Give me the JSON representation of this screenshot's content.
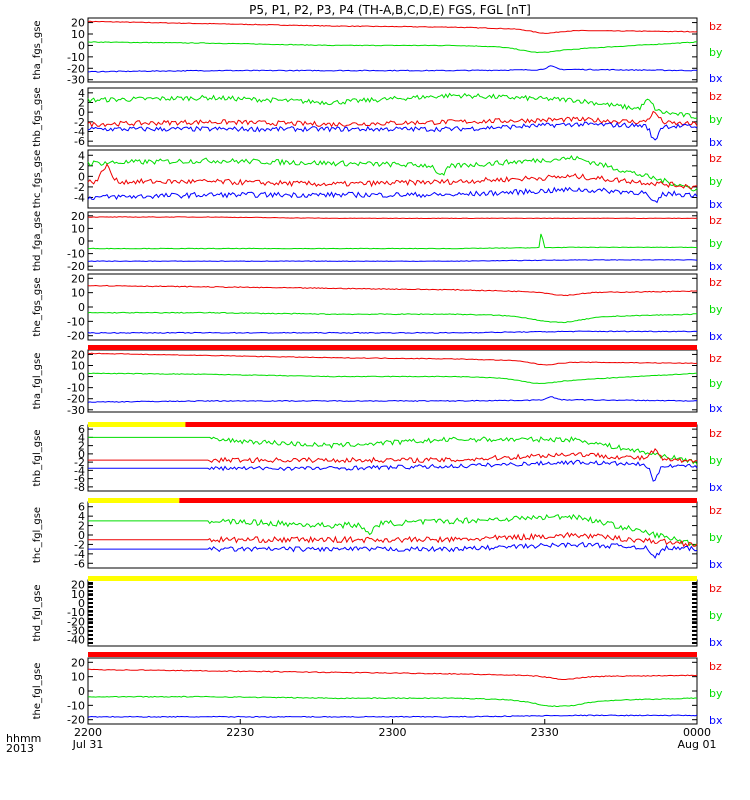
{
  "title": "P5, P1, P2, P3, P4 (TH-A,B,C,D,E) FGS, FGL [nT]",
  "colors": {
    "bx": "#0000ff",
    "by": "#00dd00",
    "bz": "#ee0000",
    "flag_red": "#ff0000",
    "flag_yellow": "#ffff00",
    "frame": "#000000"
  },
  "time_axis": {
    "row1_label": "hhmm",
    "row2_label": "2013",
    "ticks": [
      {
        "label": "2200",
        "sublabel": "Jul 31"
      },
      {
        "label": "2230",
        "sublabel": ""
      },
      {
        "label": "2300",
        "sublabel": ""
      },
      {
        "label": "2330",
        "sublabel": ""
      },
      {
        "label": "0000",
        "sublabel": "Aug 01"
      }
    ]
  },
  "chart_data": [
    {
      "type": "line",
      "ylabel": "tha_fgs_gse",
      "ylim": [
        -32,
        24
      ],
      "yticks": [
        "20",
        "10",
        "0",
        "-10",
        "-20",
        "-30"
      ],
      "ytick_values": [
        20,
        10,
        0,
        -10,
        -20,
        -30
      ],
      "legend": [
        "bz",
        "by",
        "bx"
      ],
      "data_start": 0,
      "series": [
        {
          "name": "bz",
          "base": [
            21,
            19,
            17,
            16,
            13,
            12
          ],
          "noise": 0.3,
          "events": [
            {
              "t": 0.75,
              "amp": -3,
              "w": 0.03
            }
          ]
        },
        {
          "name": "by",
          "base": [
            3,
            2,
            0,
            0,
            -3,
            3
          ],
          "noise": 0.3,
          "events": [
            {
              "t": 0.74,
              "amp": -4,
              "w": 0.04
            }
          ]
        },
        {
          "name": "bx",
          "base": [
            -23,
            -22,
            -22,
            -22,
            -21,
            -22
          ],
          "noise": 0.4,
          "events": [
            {
              "t": 0.76,
              "amp": 3,
              "w": 0.01
            }
          ]
        }
      ]
    },
    {
      "type": "line",
      "ylabel": "thb_fgs_gse",
      "ylim": [
        -7,
        5
      ],
      "yticks": [
        "4",
        "2",
        "0",
        "-2",
        "-4",
        "-6"
      ],
      "ytick_values": [
        4,
        2,
        0,
        -2,
        -4,
        -6
      ],
      "legend": [
        "bz",
        "by",
        "bx"
      ],
      "data_start": 0,
      "series": [
        {
          "name": "by",
          "base": [
            2.5,
            3,
            2,
            3.5,
            2.5,
            -1
          ],
          "noise": 0.5,
          "events": [
            {
              "t": 0.92,
              "amp": 2,
              "w": 0.01
            }
          ]
        },
        {
          "name": "bz",
          "base": [
            -2.5,
            -2,
            -2.5,
            -2,
            -1.5,
            -2.5
          ],
          "noise": 0.5,
          "events": [
            {
              "t": 0.93,
              "amp": 2,
              "w": 0.01
            }
          ]
        },
        {
          "name": "bx",
          "base": [
            -3.5,
            -3.5,
            -3.5,
            -3.5,
            -2.5,
            -3
          ],
          "noise": 0.5,
          "events": [
            {
              "t": 0.93,
              "amp": -3,
              "w": 0.008
            }
          ]
        }
      ]
    },
    {
      "type": "line",
      "ylabel": "thc_fgs_gse",
      "ylim": [
        -6,
        5
      ],
      "yticks": [
        "4",
        "2",
        "0",
        "-2",
        "-4"
      ],
      "ytick_values": [
        4,
        2,
        0,
        -2,
        -4
      ],
      "legend": [
        "bz",
        "by",
        "bx"
      ],
      "data_start": 0,
      "series": [
        {
          "name": "by",
          "base": [
            2.5,
            3,
            2.5,
            2,
            3.5,
            -2.5
          ],
          "noise": 0.5,
          "events": [
            {
              "t": 0.58,
              "amp": -2,
              "w": 0.01
            }
          ]
        },
        {
          "name": "bz",
          "base": [
            -1,
            -1,
            -1.5,
            -1,
            0,
            -2
          ],
          "noise": 0.5,
          "events": [
            {
              "t": 0.03,
              "amp": 3,
              "w": 0.01
            }
          ]
        },
        {
          "name": "bx",
          "base": [
            -4,
            -3.5,
            -3.5,
            -3.5,
            -2.5,
            -3.5
          ],
          "noise": 0.5,
          "events": [
            {
              "t": 0.93,
              "amp": -2,
              "w": 0.01
            }
          ]
        }
      ]
    },
    {
      "type": "line",
      "ylabel": "thd_fga_gse",
      "ylim": [
        -23,
        23
      ],
      "yticks": [
        "20",
        "10",
        "0",
        "-10",
        "-20"
      ],
      "ytick_values": [
        20,
        10,
        0,
        -10,
        -20
      ],
      "legend": [
        "bz",
        "by",
        "bx"
      ],
      "data_start": 0,
      "series": [
        {
          "name": "bz",
          "base": [
            19,
            19,
            18,
            18,
            18,
            18
          ],
          "noise": 0.2,
          "events": []
        },
        {
          "name": "by",
          "base": [
            -6,
            -6,
            -6,
            -6,
            -5,
            -5
          ],
          "noise": 0.2,
          "events": [
            {
              "t": 0.745,
              "amp": 16,
              "w": 0.002
            }
          ]
        },
        {
          "name": "bx",
          "base": [
            -16,
            -16,
            -16,
            -16,
            -15,
            -15
          ],
          "noise": 0.2,
          "events": []
        }
      ]
    },
    {
      "type": "line",
      "ylabel": "the_fgs_gse",
      "ylim": [
        -23,
        23
      ],
      "yticks": [
        "20",
        "10",
        "0",
        "-10",
        "-20"
      ],
      "ytick_values": [
        20,
        10,
        0,
        -10,
        -20
      ],
      "legend": [
        "bz",
        "by",
        "bx"
      ],
      "data_start": 0,
      "series": [
        {
          "name": "bz",
          "base": [
            15,
            14,
            13,
            12,
            10,
            11
          ],
          "noise": 0.3,
          "events": [
            {
              "t": 0.78,
              "amp": -2,
              "w": 0.03
            }
          ]
        },
        {
          "name": "by",
          "base": [
            -4,
            -4,
            -5,
            -5,
            -7,
            -5
          ],
          "noise": 0.3,
          "events": [
            {
              "t": 0.77,
              "amp": -4,
              "w": 0.05
            }
          ]
        },
        {
          "name": "bx",
          "base": [
            -18,
            -18,
            -18,
            -18,
            -17,
            -17
          ],
          "noise": 0.3,
          "events": []
        }
      ]
    },
    {
      "type": "line",
      "ylabel": "tha_fgl_gse",
      "ylim": [
        -32,
        24
      ],
      "yticks": [
        "20",
        "10",
        "0",
        "-10",
        "-20",
        "-30"
      ],
      "ytick_values": [
        20,
        10,
        0,
        -10,
        -20,
        -30
      ],
      "legend": [
        "bz",
        "by",
        "bx"
      ],
      "data_start": 0,
      "series": [
        {
          "name": "bz",
          "base": [
            21,
            19,
            17,
            16,
            13,
            12
          ],
          "noise": 0.3,
          "events": [
            {
              "t": 0.75,
              "amp": -3,
              "w": 0.03
            }
          ]
        },
        {
          "name": "by",
          "base": [
            3,
            2,
            0,
            0,
            -3,
            3
          ],
          "noise": 0.3,
          "events": [
            {
              "t": 0.74,
              "amp": -4,
              "w": 0.04
            }
          ]
        },
        {
          "name": "bx",
          "base": [
            -23,
            -22,
            -22,
            -22,
            -21,
            -22
          ],
          "noise": 0.4,
          "events": [
            {
              "t": 0.76,
              "amp": 3,
              "w": 0.01
            }
          ]
        }
      ]
    },
    {
      "type": "line",
      "ylabel": "thb_fgl_gse",
      "ylim": [
        -9,
        7
      ],
      "yticks": [
        "6",
        "4",
        "2",
        "0",
        "-2",
        "-4",
        "-6",
        "-8"
      ],
      "ytick_values": [
        6,
        4,
        2,
        0,
        -2,
        -4,
        -6,
        -8
      ],
      "legend": [
        "bz",
        "by",
        "bx"
      ],
      "data_start": 0.2,
      "series": [
        {
          "name": "by",
          "base": [
            4,
            3.5,
            2,
            3.5,
            3.5,
            -2
          ],
          "noise": 0.6,
          "events": []
        },
        {
          "name": "bz",
          "base": [
            -1.5,
            -1.5,
            -1.5,
            -1.5,
            0,
            -2
          ],
          "noise": 0.6,
          "events": [
            {
              "t": 0.93,
              "amp": 2,
              "w": 0.01
            }
          ]
        },
        {
          "name": "bx",
          "base": [
            -3.5,
            -3.5,
            -3.5,
            -3,
            -2,
            -3
          ],
          "noise": 0.5,
          "events": [
            {
              "t": 0.93,
              "amp": -4,
              "w": 0.008
            }
          ]
        }
      ]
    },
    {
      "type": "line",
      "ylabel": "thc_fgl_gse",
      "ylim": [
        -7,
        7
      ],
      "yticks": [
        "6",
        "4",
        "2",
        "0",
        "-2",
        "-4",
        "-6"
      ],
      "ytick_values": [
        6,
        4,
        2,
        0,
        -2,
        -4,
        -6
      ],
      "legend": [
        "bz",
        "by",
        "bx"
      ],
      "data_start": 0.2,
      "series": [
        {
          "name": "by",
          "base": [
            3,
            3,
            2,
            3,
            4,
            -2
          ],
          "noise": 0.6,
          "events": [
            {
              "t": 0.46,
              "amp": -2,
              "w": 0.01
            }
          ]
        },
        {
          "name": "bz",
          "base": [
            -1,
            -1,
            -1,
            -1,
            0,
            -2
          ],
          "noise": 0.6,
          "events": []
        },
        {
          "name": "bx",
          "base": [
            -3,
            -3,
            -3,
            -3,
            -2,
            -3
          ],
          "noise": 0.5,
          "events": [
            {
              "t": 0.93,
              "amp": -2,
              "w": 0.01
            }
          ]
        }
      ]
    },
    {
      "type": "line",
      "ylabel": "thd_fgl_gse",
      "ylim": [
        -47,
        25
      ],
      "yticks": [
        "20",
        "10",
        "0",
        "-10",
        "-20",
        "-30",
        "-40"
      ],
      "ytick_values": [
        20,
        10,
        0,
        -10,
        -20,
        -30,
        -40
      ],
      "legend": [
        "bz",
        "by",
        "bx"
      ],
      "data_start": 0,
      "series": []
    },
    {
      "type": "line",
      "ylabel": "the_fgl_gse",
      "ylim": [
        -23,
        23
      ],
      "yticks": [
        "20",
        "10",
        "0",
        "-10",
        "-20"
      ],
      "ytick_values": [
        20,
        10,
        0,
        -10,
        -20
      ],
      "legend": [
        "bz",
        "by",
        "bx"
      ],
      "data_start": 0,
      "series": [
        {
          "name": "bz",
          "base": [
            15,
            14,
            13,
            12,
            10,
            11
          ],
          "noise": 0.3,
          "events": [
            {
              "t": 0.78,
              "amp": -2,
              "w": 0.03
            }
          ]
        },
        {
          "name": "by",
          "base": [
            -4,
            -4,
            -5,
            -5,
            -7,
            -5
          ],
          "noise": 0.3,
          "events": [
            {
              "t": 0.77,
              "amp": -4,
              "w": 0.05
            }
          ]
        },
        {
          "name": "bx",
          "base": [
            -18,
            -18,
            -18,
            -18,
            -17,
            -17
          ],
          "noise": 0.3,
          "events": []
        }
      ]
    }
  ],
  "flag_bars": [
    {
      "after_panel": 4,
      "segments": [
        {
          "from": 0,
          "to": 1,
          "color": "red"
        }
      ]
    },
    {
      "after_panel": 5,
      "segments": [
        {
          "from": 0,
          "to": 0.16,
          "color": "yellow"
        },
        {
          "from": 0.16,
          "to": 1,
          "color": "red"
        }
      ]
    },
    {
      "after_panel": 6,
      "segments": [
        {
          "from": 0,
          "to": 0.15,
          "color": "yellow"
        },
        {
          "from": 0.15,
          "to": 1,
          "color": "red"
        }
      ]
    },
    {
      "after_panel": 7,
      "segments": [
        {
          "from": 0,
          "to": 1,
          "color": "yellow"
        }
      ]
    },
    {
      "after_panel": 8,
      "segments": [
        {
          "from": 0,
          "to": 1,
          "color": "red"
        }
      ]
    }
  ]
}
